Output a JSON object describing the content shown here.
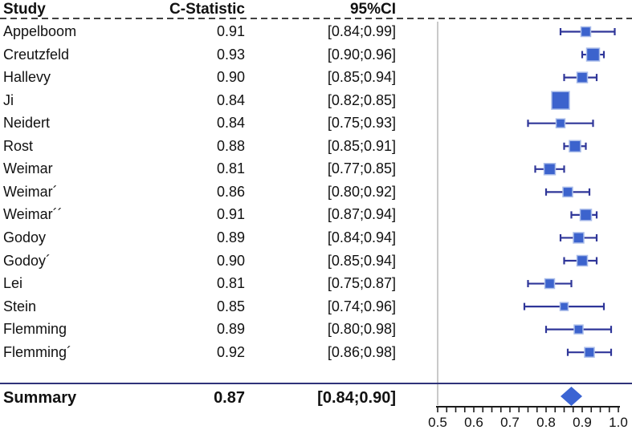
{
  "header": {
    "study": "Study",
    "c_statistic": "C-Statistic",
    "ci": "95%CI"
  },
  "summary_row": {
    "label": "Summary",
    "c_label": "0.87",
    "ci_label": "[0.84;0.90]"
  },
  "chart_data": {
    "type": "forest",
    "title": "",
    "xlabel": "",
    "x_axis": {
      "min": 0.5,
      "max": 1.0,
      "major_ticks": [
        0.5,
        0.6,
        0.7,
        0.8,
        0.9,
        1.0
      ],
      "tick_labels": [
        "0.5",
        "0.6",
        "0.7",
        "0.8",
        "0.9",
        "1.0"
      ],
      "minor_tick_step": 0.025
    },
    "studies": [
      {
        "name": "Appelboom",
        "c": 0.91,
        "c_label": "0.91",
        "lo": 0.84,
        "hi": 0.99,
        "ci_label": "[0.84;0.99]",
        "size": 12
      },
      {
        "name": "Creutzfeld",
        "c": 0.93,
        "c_label": "0.93",
        "lo": 0.9,
        "hi": 0.96,
        "ci_label": "[0.90;0.96]",
        "size": 16
      },
      {
        "name": "Hallevy",
        "c": 0.9,
        "c_label": "0.90",
        "lo": 0.85,
        "hi": 0.94,
        "ci_label": "[0.85;0.94]",
        "size": 13
      },
      {
        "name": "Ji",
        "c": 0.84,
        "c_label": "0.84",
        "lo": 0.82,
        "hi": 0.85,
        "ci_label": "[0.82;0.85]",
        "size": 22
      },
      {
        "name": "Neidert",
        "c": 0.84,
        "c_label": "0.84",
        "lo": 0.75,
        "hi": 0.93,
        "ci_label": "[0.75;0.93]",
        "size": 11
      },
      {
        "name": "Rost",
        "c": 0.88,
        "c_label": "0.88",
        "lo": 0.85,
        "hi": 0.91,
        "ci_label": "[0.85;0.91]",
        "size": 14
      },
      {
        "name": "Weimar",
        "c": 0.81,
        "c_label": "0.81",
        "lo": 0.77,
        "hi": 0.85,
        "ci_label": "[0.77;0.85]",
        "size": 14
      },
      {
        "name": "Weimar´",
        "c": 0.86,
        "c_label": "0.86",
        "lo": 0.8,
        "hi": 0.92,
        "ci_label": "[0.80;0.92]",
        "size": 12
      },
      {
        "name": "Weimar´´",
        "c": 0.91,
        "c_label": "0.91",
        "lo": 0.87,
        "hi": 0.94,
        "ci_label": "[0.87;0.94]",
        "size": 14
      },
      {
        "name": "Godoy",
        "c": 0.89,
        "c_label": "0.89",
        "lo": 0.84,
        "hi": 0.94,
        "ci_label": "[0.84;0.94]",
        "size": 13
      },
      {
        "name": "Godoy´",
        "c": 0.9,
        "c_label": "0.90",
        "lo": 0.85,
        "hi": 0.94,
        "ci_label": "[0.85;0.94]",
        "size": 13
      },
      {
        "name": "Lei",
        "c": 0.81,
        "c_label": "0.81",
        "lo": 0.75,
        "hi": 0.87,
        "ci_label": "[0.75;0.87]",
        "size": 12
      },
      {
        "name": "Stein",
        "c": 0.85,
        "c_label": "0.85",
        "lo": 0.74,
        "hi": 0.96,
        "ci_label": "[0.74;0.96]",
        "size": 10
      },
      {
        "name": "Flemming",
        "c": 0.89,
        "c_label": "0.89",
        "lo": 0.8,
        "hi": 0.98,
        "ci_label": "[0.80;0.98]",
        "size": 11
      },
      {
        "name": "Flemming´",
        "c": 0.92,
        "c_label": "0.92",
        "lo": 0.86,
        "hi": 0.98,
        "ci_label": "[0.86;0.98]",
        "size": 12
      }
    ],
    "summary": {
      "label": "Summary",
      "c": 0.87,
      "lo": 0.84,
      "hi": 0.9,
      "ci_label": "[0.84;0.90]"
    },
    "colors": {
      "square": "#3c63cd",
      "square_border": "#aabdea",
      "whisker": "#2f3699",
      "diamond": "#3b64d3",
      "reference_line": "#c9c9c9",
      "summary_rule": "#2f3379",
      "header_dash": "#404040",
      "axis": "#1c1c1c",
      "text": "#111111"
    },
    "legend": null,
    "grid": false
  }
}
